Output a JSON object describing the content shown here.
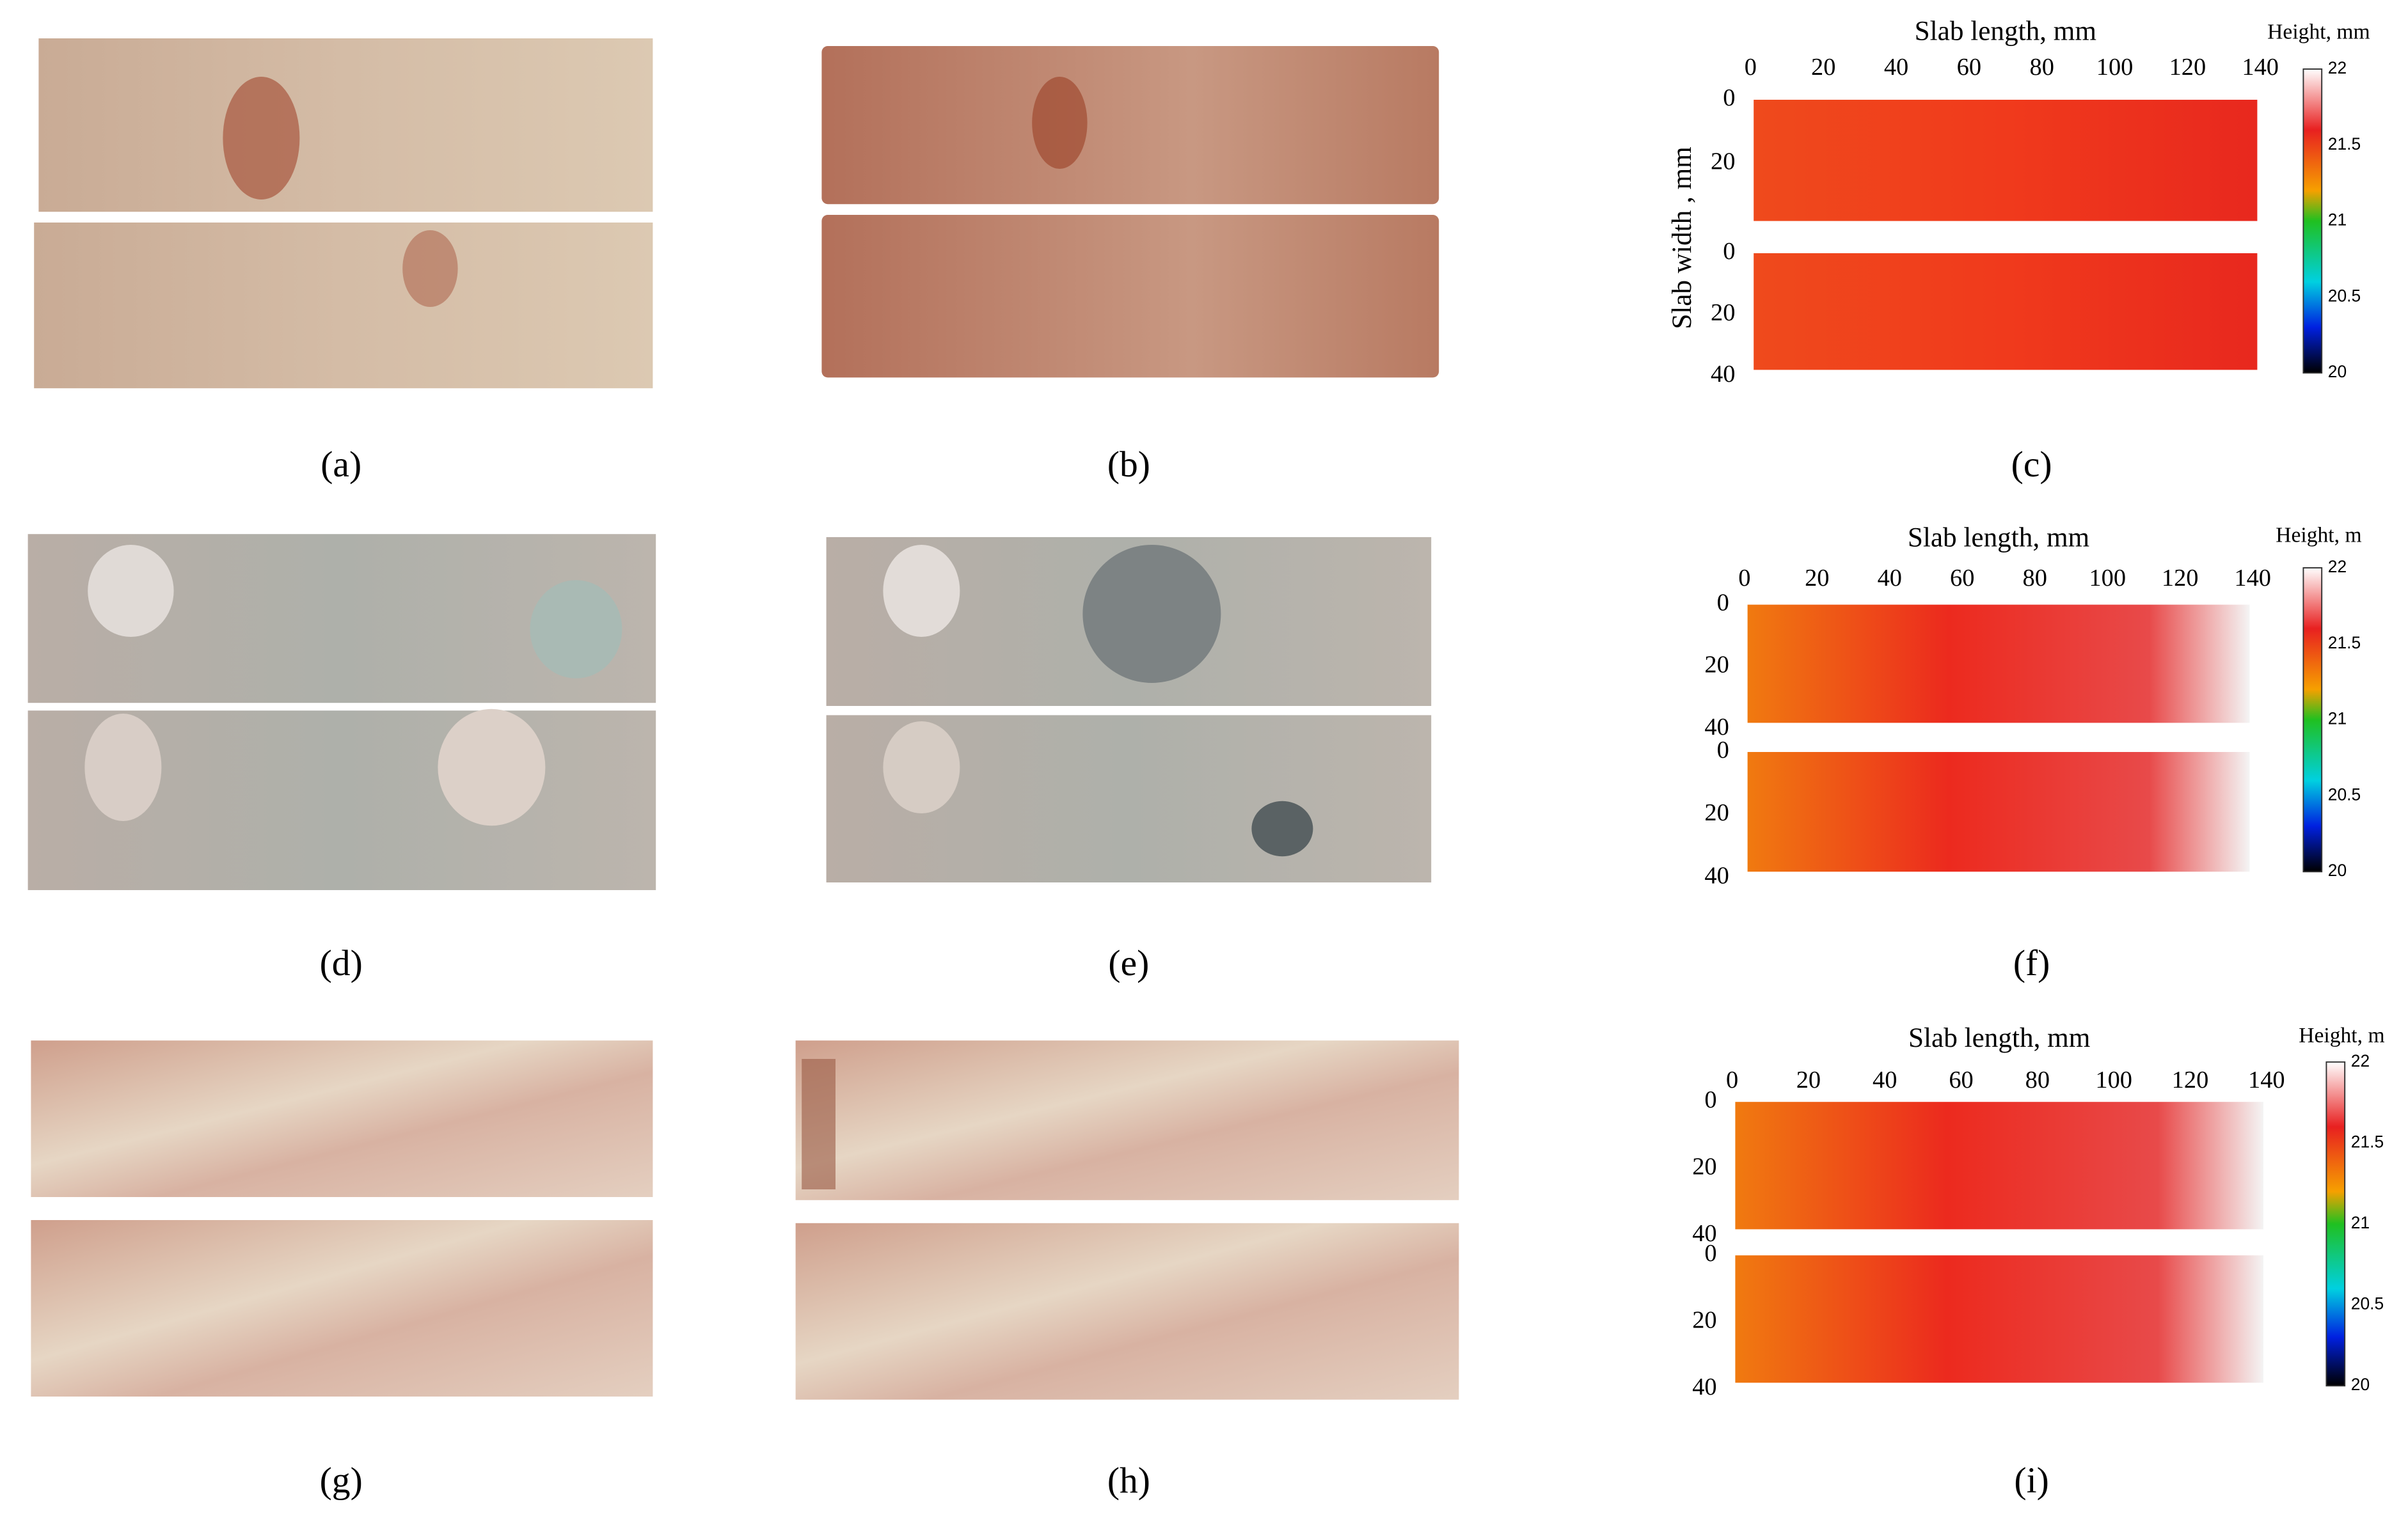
{
  "panels": [
    {
      "label": "(a)"
    },
    {
      "label": "(b)"
    },
    {
      "label": "(c)"
    },
    {
      "label": "(d)"
    },
    {
      "label": "(e)"
    },
    {
      "label": "(f)"
    },
    {
      "label": "(g)"
    },
    {
      "label": "(h)"
    },
    {
      "label": "(i)"
    }
  ],
  "height_maps": [
    {
      "x_axis_label": "Slab length, mm",
      "y_axis_label": "Slab width , mm",
      "x_ticks": [
        0,
        20,
        40,
        60,
        80,
        100,
        120,
        140
      ],
      "slabs": [
        {
          "y_ticks": [
            0,
            20
          ]
        },
        {
          "y_ticks": [
            0,
            20,
            40
          ]
        }
      ],
      "colorbar_label": "Height, mm",
      "colorbar_ticks": [
        22,
        21.5,
        21,
        20.5,
        20
      ]
    },
    {
      "x_axis_label": "Slab length, mm",
      "x_ticks": [
        0,
        20,
        40,
        60,
        80,
        100,
        120,
        140
      ],
      "slabs": [
        {
          "y_ticks": [
            0,
            20,
            40
          ]
        },
        {
          "y_ticks": [
            0,
            20,
            40
          ]
        }
      ],
      "colorbar_label": "Height, m",
      "colorbar_ticks": [
        22,
        21.5,
        21,
        20.5,
        20
      ]
    },
    {
      "x_axis_label": "Slab length, mm",
      "x_ticks": [
        0,
        20,
        40,
        60,
        80,
        100,
        120,
        140
      ],
      "slabs": [
        {
          "y_ticks": [
            0,
            20,
            40
          ]
        },
        {
          "y_ticks": [
            0,
            20,
            40
          ]
        }
      ],
      "colorbar_label": "Height, m",
      "colorbar_ticks": [
        22,
        21.5,
        21,
        20.5,
        20
      ]
    }
  ]
}
